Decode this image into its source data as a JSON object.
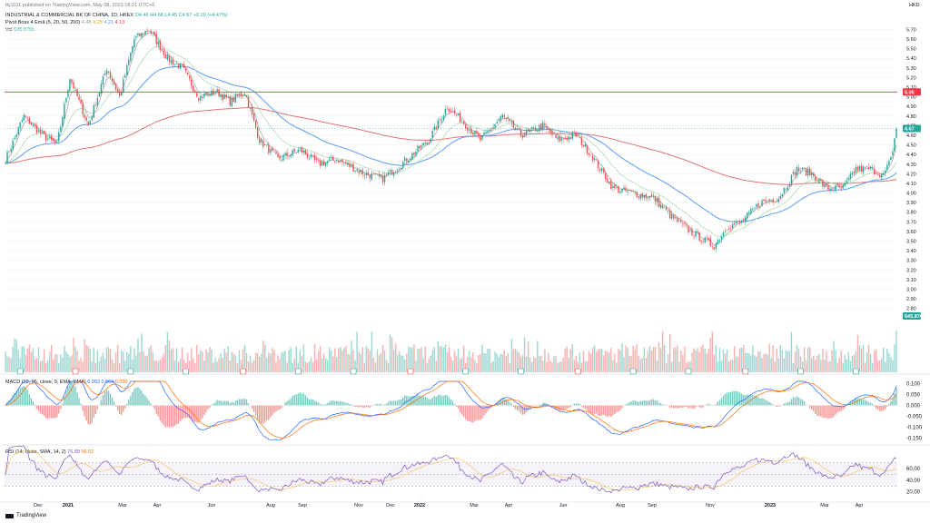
{
  "header": {
    "published": "tkj1101 published on TradingView.com, May 08, 2023 18:21 UTC+8",
    "symbol": "INDUSTRIAL & COMMERCIAL BK OF CHINA, 1D, HKEX",
    "ohlc": "O4.46 H4.68 L4.45 C4.67 +0.20 (+4.47%)",
    "indicator_name": "Pivot Boss 4 Emā (5, 20, 50, 200)",
    "indicator_values": [
      "4.48",
      "4.28",
      "4.21",
      "4.13"
    ],
    "vol_label": "Vol",
    "vol_value": "645.876k"
  },
  "macd_label": {
    "name": "MACD (12, 26, close, 9, EMA, EMA)",
    "v1": "0.053",
    "v2": "0.064",
    "v3": "0.030"
  },
  "rsi_label": {
    "name": "RSI (14, close, SMA, 14, 2)",
    "v1": "76.89",
    "v2": "56.02"
  },
  "currency": "HKD",
  "logo_text": "TradingView",
  "colors": {
    "up": "#26a69a",
    "down": "#ef5350",
    "ema5": "#9c9c9c",
    "ema20": "#a5d6a7",
    "ema50": "#5b9cf6",
    "ema200": "#e57373",
    "hline": "#f23645",
    "rsi": "#7e57c2",
    "macd": "#2962ff",
    "signal": "#ff6d00"
  },
  "chart_data": {
    "type": "candlestick",
    "period": "1D",
    "x_ticks": [
      "Dec",
      "2021",
      "Mar",
      "Apr",
      "Jun",
      "Aug",
      "Sep",
      "Nov",
      "Dec",
      "2022",
      "Mar",
      "Apr",
      "Jun",
      "Aug",
      "Sep",
      "Nov",
      "2023",
      "Mar",
      "Apr"
    ],
    "y_ticks": [
      "5.70",
      "5.60",
      "5.50",
      "5.40",
      "5.30",
      "5.20",
      "5.10",
      "5.00",
      "4.90",
      "4.80",
      "4.70",
      "4.60",
      "4.50",
      "4.40",
      "4.30",
      "4.20",
      "4.10",
      "4.00",
      "3.90",
      "3.80",
      "3.70",
      "3.60",
      "3.50",
      "3.40",
      "3.30",
      "3.20",
      "3.10",
      "3.00",
      "2.90",
      "2.80"
    ],
    "ylim": [
      2.75,
      5.77
    ],
    "horizontal_line": 5.05,
    "horizontal_line_label": "5.05",
    "last_price": 4.67,
    "last_price_label": "4.67",
    "volume_label": "645.876k",
    "anchors": [
      [
        0,
        4.35
      ],
      [
        10,
        4.8
      ],
      [
        20,
        4.6
      ],
      [
        28,
        4.5
      ],
      [
        35,
        5.2
      ],
      [
        45,
        4.7
      ],
      [
        55,
        5.3
      ],
      [
        62,
        5.0
      ],
      [
        70,
        5.6
      ],
      [
        78,
        5.7
      ],
      [
        88,
        5.4
      ],
      [
        96,
        5.3
      ],
      [
        105,
        5.0
      ],
      [
        115,
        5.05
      ],
      [
        122,
        4.95
      ],
      [
        130,
        5.05
      ],
      [
        138,
        4.55
      ],
      [
        148,
        4.35
      ],
      [
        160,
        4.45
      ],
      [
        170,
        4.3
      ],
      [
        180,
        4.35
      ],
      [
        195,
        4.2
      ],
      [
        205,
        4.15
      ],
      [
        215,
        4.3
      ],
      [
        230,
        4.55
      ],
      [
        240,
        4.9
      ],
      [
        248,
        4.75
      ],
      [
        258,
        4.55
      ],
      [
        270,
        4.8
      ],
      [
        280,
        4.6
      ],
      [
        292,
        4.7
      ],
      [
        300,
        4.55
      ],
      [
        310,
        4.6
      ],
      [
        318,
        4.4
      ],
      [
        330,
        4.05
      ],
      [
        340,
        4.0
      ],
      [
        352,
        3.95
      ],
      [
        362,
        3.75
      ],
      [
        372,
        3.6
      ],
      [
        380,
        3.5
      ],
      [
        385,
        3.45
      ],
      [
        392,
        3.65
      ],
      [
        400,
        3.7
      ],
      [
        410,
        3.9
      ],
      [
        420,
        3.95
      ],
      [
        430,
        4.25
      ],
      [
        438,
        4.2
      ],
      [
        446,
        4.05
      ],
      [
        455,
        4.05
      ],
      [
        462,
        4.25
      ],
      [
        470,
        4.25
      ],
      [
        477,
        4.18
      ],
      [
        481,
        4.35
      ],
      [
        484,
        4.67
      ]
    ],
    "macd": {
      "ylim": [
        -0.16,
        0.11
      ],
      "ticks": [
        "0.100",
        "0.050",
        "0.000",
        "-0.050",
        "-0.100",
        "-0.150"
      ],
      "last_macd": 0.064,
      "last_signal": 0.053,
      "last_hist": 0.03
    },
    "rsi": {
      "ylim": [
        10,
        90
      ],
      "ticks": [
        "60.00",
        "40.00",
        "20.00"
      ],
      "upper": 70,
      "lower": 30,
      "last": 76.89,
      "last_ma": 56.02
    }
  }
}
